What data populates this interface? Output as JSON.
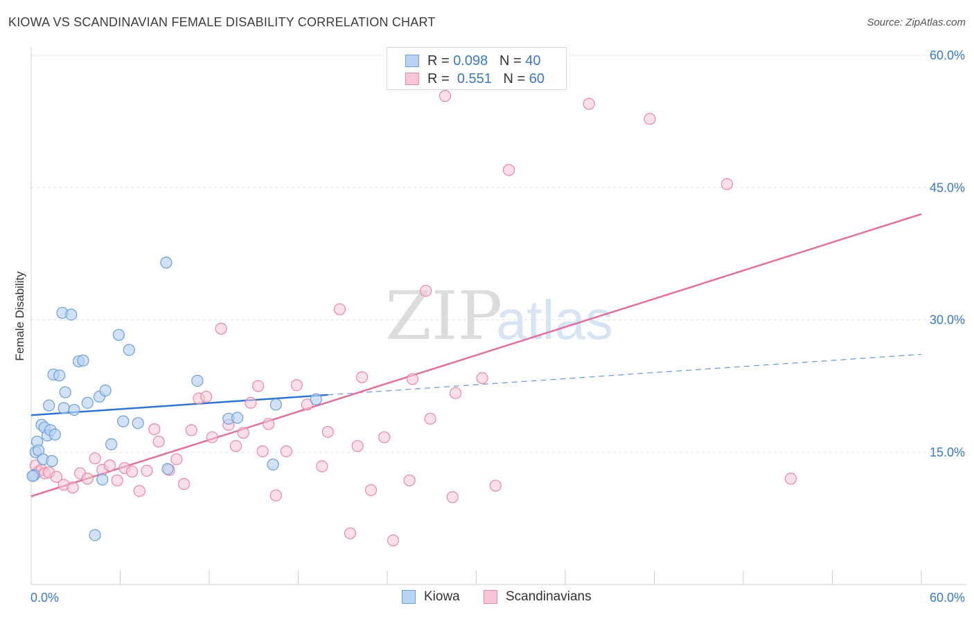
{
  "title": "KIOWA VS SCANDINAVIAN FEMALE DISABILITY CORRELATION CHART",
  "source": "Source: ZipAtlas.com",
  "colors": {
    "kiowa_fill": "#b9d3f2",
    "kiowa_stroke": "#6a9fd8",
    "kiowa_line": "#2f74d0",
    "scand_fill": "#f8c6d6",
    "scand_stroke": "#e887a6",
    "scand_line": "#e0709a",
    "tick_label": "#3a78c9",
    "grid": "#e0e0e0"
  },
  "legend": {
    "rows": [
      {
        "r_label": "R = ",
        "r_value": "0.098",
        "n_label": "N = ",
        "n_value": "40"
      },
      {
        "r_label": "R = ",
        "r_value": "0.551",
        "n_label": "N = ",
        "n_value": "60"
      }
    ]
  },
  "bottom_legend": [
    "Kiowa",
    "Scandinavians"
  ],
  "chart_data": {
    "type": "scatter",
    "xlabel": "",
    "ylabel": "Female Disability",
    "xlim": [
      0,
      60
    ],
    "ylim": [
      0,
      60
    ],
    "x_tick_labels": [
      "0.0%",
      "60.0%"
    ],
    "y_ticks": [
      15,
      30,
      45,
      60
    ],
    "y_tick_labels": [
      "15.0%",
      "30.0%",
      "45.0%",
      "60.0%"
    ],
    "watermark": {
      "zip": "ZIP",
      "atlas": "atlas"
    },
    "series": [
      {
        "name": "Kiowa",
        "r": 0.098,
        "n": 40,
        "trend": {
          "x": [
            0,
            20
          ],
          "y": [
            19.2,
            21.5
          ]
        },
        "trend_dashed": {
          "x": [
            20,
            60
          ],
          "y": [
            21.5,
            26.1
          ]
        },
        "points": [
          [
            0.2,
            12.4
          ],
          [
            0.3,
            15.0
          ],
          [
            0.4,
            16.2
          ],
          [
            0.5,
            15.2
          ],
          [
            0.7,
            18.1
          ],
          [
            0.8,
            14.2
          ],
          [
            0.9,
            17.8
          ],
          [
            1.1,
            16.9
          ],
          [
            1.2,
            20.3
          ],
          [
            1.3,
            17.5
          ],
          [
            1.4,
            14.0
          ],
          [
            1.5,
            23.8
          ],
          [
            1.6,
            17.0
          ],
          [
            1.9,
            23.7
          ],
          [
            2.1,
            30.8
          ],
          [
            2.2,
            20.0
          ],
          [
            2.3,
            21.8
          ],
          [
            2.7,
            30.6
          ],
          [
            2.9,
            19.8
          ],
          [
            3.2,
            25.3
          ],
          [
            3.5,
            25.4
          ],
          [
            3.8,
            20.6
          ],
          [
            4.3,
            5.6
          ],
          [
            4.6,
            21.3
          ],
          [
            4.8,
            11.9
          ],
          [
            5.0,
            22.0
          ],
          [
            5.4,
            15.9
          ],
          [
            5.9,
            28.3
          ],
          [
            6.2,
            18.5
          ],
          [
            6.6,
            26.6
          ],
          [
            7.2,
            18.3
          ],
          [
            9.1,
            36.5
          ],
          [
            9.2,
            13.1
          ],
          [
            11.2,
            23.1
          ],
          [
            13.3,
            18.8
          ],
          [
            13.9,
            18.9
          ],
          [
            16.3,
            13.6
          ],
          [
            16.5,
            20.4
          ],
          [
            19.2,
            21.0
          ],
          [
            0.1,
            12.3
          ]
        ]
      },
      {
        "name": "Scandinavians",
        "r": 0.551,
        "n": 60,
        "trend": {
          "x": [
            0,
            60
          ],
          "y": [
            10.0,
            42.0
          ]
        },
        "points": [
          [
            0.3,
            13.5
          ],
          [
            0.5,
            12.8
          ],
          [
            0.7,
            13.0
          ],
          [
            0.9,
            12.6
          ],
          [
            1.2,
            12.7
          ],
          [
            1.7,
            12.2
          ],
          [
            2.2,
            11.3
          ],
          [
            2.8,
            11.0
          ],
          [
            3.3,
            12.6
          ],
          [
            3.8,
            12.0
          ],
          [
            4.3,
            14.3
          ],
          [
            4.8,
            13.0
          ],
          [
            5.3,
            13.5
          ],
          [
            5.8,
            11.8
          ],
          [
            6.3,
            13.2
          ],
          [
            6.8,
            12.8
          ],
          [
            7.3,
            10.6
          ],
          [
            7.8,
            12.9
          ],
          [
            8.3,
            17.6
          ],
          [
            8.6,
            16.2
          ],
          [
            9.3,
            13.0
          ],
          [
            9.8,
            14.2
          ],
          [
            10.3,
            11.4
          ],
          [
            10.8,
            17.5
          ],
          [
            11.3,
            21.1
          ],
          [
            11.8,
            21.3
          ],
          [
            12.2,
            16.7
          ],
          [
            12.8,
            29.0
          ],
          [
            13.3,
            18.1
          ],
          [
            13.8,
            15.7
          ],
          [
            14.3,
            17.2
          ],
          [
            14.8,
            20.6
          ],
          [
            15.3,
            22.5
          ],
          [
            15.6,
            15.1
          ],
          [
            16.0,
            18.2
          ],
          [
            16.5,
            10.1
          ],
          [
            17.2,
            15.1
          ],
          [
            17.9,
            22.6
          ],
          [
            18.6,
            20.4
          ],
          [
            19.6,
            13.4
          ],
          [
            20.0,
            17.3
          ],
          [
            20.8,
            31.2
          ],
          [
            21.5,
            5.8
          ],
          [
            22.0,
            15.7
          ],
          [
            22.3,
            23.5
          ],
          [
            22.9,
            10.7
          ],
          [
            23.8,
            16.7
          ],
          [
            24.4,
            5.0
          ],
          [
            25.5,
            11.8
          ],
          [
            25.7,
            23.3
          ],
          [
            26.6,
            33.3
          ],
          [
            26.9,
            18.8
          ],
          [
            27.9,
            55.4
          ],
          [
            28.4,
            9.9
          ],
          [
            28.6,
            21.7
          ],
          [
            30.4,
            23.4
          ],
          [
            31.3,
            11.2
          ],
          [
            32.2,
            47.0
          ],
          [
            37.6,
            54.5
          ],
          [
            41.7,
            52.8
          ]
        ],
        "extra_points": [
          [
            46.9,
            45.4
          ],
          [
            51.2,
            12.0
          ]
        ]
      }
    ]
  }
}
